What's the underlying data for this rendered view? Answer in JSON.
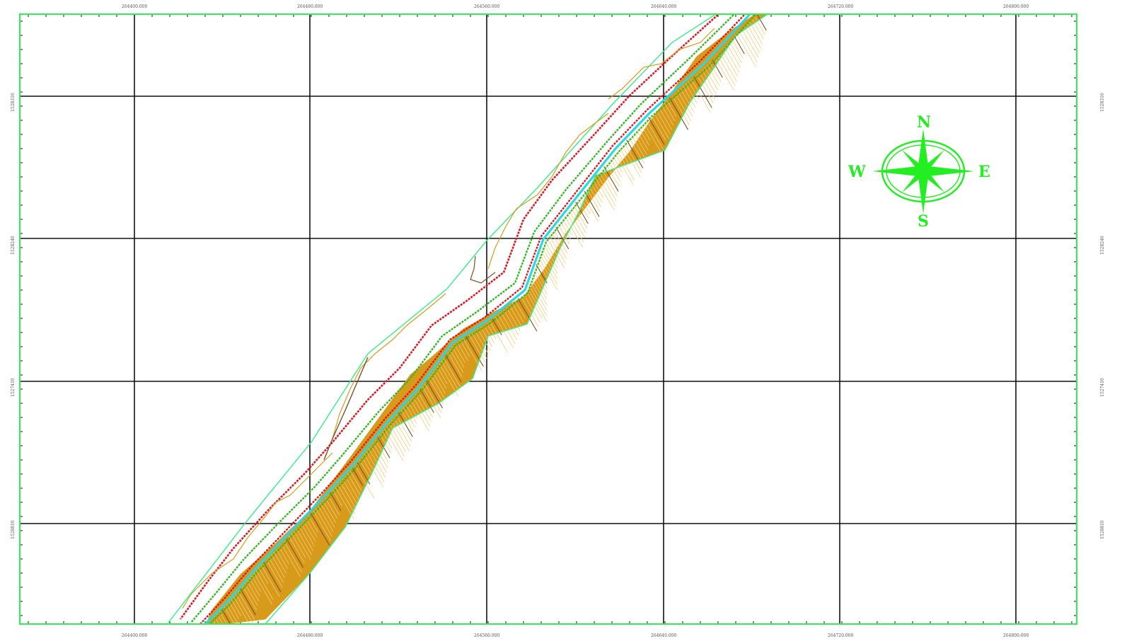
{
  "map": {
    "top_axis_labels": [
      "264400.000",
      "264480.000",
      "264560.000",
      "264640.000",
      "264720.000",
      "264800.000"
    ],
    "bottom_axis_labels": [
      "264400.000",
      "264480.000",
      "264560.000",
      "264640.000",
      "264720.000",
      "264800.000"
    ],
    "left_axis_labels": [
      "1528310",
      "1528240",
      "1527410",
      "1528810"
    ],
    "right_axis_labels": [
      "1528310",
      "1528240",
      "1527410",
      "1528810"
    ]
  },
  "compass": {
    "north": "N",
    "south": "S",
    "east": "E",
    "west": "W"
  },
  "colors": {
    "frame": "#33ee55",
    "grid": "#111111",
    "road_edge_red": "#e0141e",
    "road_edge_green": "#30b820",
    "centerline_cyan": "#28d8e8",
    "contour_fill": "#d89a1a",
    "contour_line": "#f2cf78",
    "contour_index": "#7a4f2a",
    "corridor_boundary": "#33ee88",
    "compass": "#22ee22"
  }
}
